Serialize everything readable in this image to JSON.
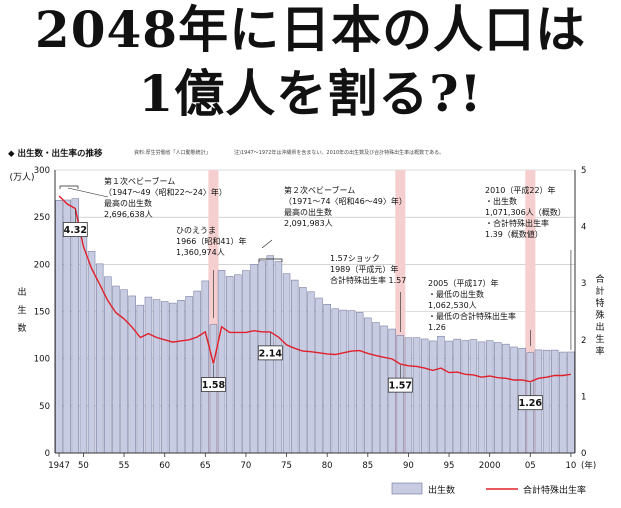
{
  "headline": {
    "line1": "2048年に日本の人口は",
    "line2": "1億人を割る?!"
  },
  "chart_caption": "◆ 出生数・出生率の推移",
  "source_note": "資料:厚生労働省「人口動態統計」",
  "footnote": "注)1947〜1972年は沖縄県を含まない。2010年の出生数及び合計特殊出生率は概数である。",
  "colors": {
    "bars": "#c8cce2",
    "bar_edge": "#6a6f96",
    "rate_line": "#e0202a",
    "highlight": "#f5cfcf"
  },
  "chart_data": {
    "type": "bar",
    "x_label": "(年)",
    "y_left": {
      "unit": "(万人)",
      "label": [
        "出",
        "生",
        "数"
      ],
      "ylim": [
        0,
        300
      ],
      "ticks": [
        0,
        50,
        100,
        150,
        200,
        250,
        300
      ]
    },
    "y_right": {
      "label": [
        "合",
        "計",
        "特",
        "殊",
        "出",
        "生",
        "率"
      ],
      "ylim": [
        0,
        5
      ],
      "ticks": [
        0,
        1,
        2,
        3,
        4,
        5
      ]
    },
    "x_ticks": [
      {
        "year": 1947,
        "label": "1947"
      },
      {
        "year": 1950,
        "label": "50"
      },
      {
        "year": 1955,
        "label": "55"
      },
      {
        "year": 1960,
        "label": "60"
      },
      {
        "year": 1965,
        "label": "65"
      },
      {
        "year": 1970,
        "label": "70"
      },
      {
        "year": 1975,
        "label": "75"
      },
      {
        "year": 1980,
        "label": "80"
      },
      {
        "year": 1985,
        "label": "85"
      },
      {
        "year": 1990,
        "label": "90"
      },
      {
        "year": 1995,
        "label": "95"
      },
      {
        "year": 2000,
        "label": "2000"
      },
      {
        "year": 2005,
        "label": "05"
      },
      {
        "year": 2010,
        "label": "10"
      }
    ],
    "years": [
      1947,
      1948,
      1949,
      1950,
      1951,
      1952,
      1953,
      1954,
      1955,
      1956,
      1957,
      1958,
      1959,
      1960,
      1961,
      1962,
      1963,
      1964,
      1965,
      1966,
      1967,
      1968,
      1969,
      1970,
      1971,
      1972,
      1973,
      1974,
      1975,
      1976,
      1977,
      1978,
      1979,
      1980,
      1981,
      1982,
      1983,
      1984,
      1985,
      1986,
      1987,
      1988,
      1989,
      1990,
      1991,
      1992,
      1993,
      1994,
      1995,
      1996,
      1997,
      1998,
      1999,
      2000,
      2001,
      2002,
      2003,
      2004,
      2005,
      2006,
      2007,
      2008,
      2009,
      2010
    ],
    "series": [
      {
        "name": "出生数",
        "axis": "left",
        "values": [
          267.9,
          268.2,
          269.7,
          233.8,
          213.8,
          200.5,
          186.8,
          177.0,
          173.1,
          166.5,
          156.7,
          165.3,
          162.6,
          160.6,
          158.9,
          161.9,
          166.0,
          171.7,
          182.4,
          136.1,
          193.6,
          187.2,
          188.9,
          193.4,
          200.1,
          203.9,
          209.2,
          203.0,
          190.1,
          183.3,
          175.5,
          170.9,
          164.3,
          157.7,
          152.9,
          151.5,
          150.9,
          149.0,
          143.2,
          138.3,
          134.7,
          131.4,
          124.7,
          122.2,
          122.3,
          120.9,
          118.8,
          123.8,
          118.7,
          120.7,
          119.2,
          120.3,
          117.8,
          119.1,
          117.1,
          115.4,
          112.4,
          111.1,
          106.3,
          109.3,
          109.0,
          109.1,
          107.0,
          107.1
        ]
      },
      {
        "name": "合計特殊出生率",
        "axis": "right",
        "values": [
          4.54,
          4.4,
          4.32,
          3.65,
          3.26,
          2.98,
          2.69,
          2.48,
          2.37,
          2.22,
          2.04,
          2.11,
          2.04,
          2.0,
          1.96,
          1.98,
          2.0,
          2.05,
          2.14,
          1.58,
          2.23,
          2.13,
          2.13,
          2.13,
          2.16,
          2.14,
          2.14,
          2.05,
          1.91,
          1.85,
          1.8,
          1.79,
          1.77,
          1.75,
          1.74,
          1.77,
          1.8,
          1.81,
          1.76,
          1.72,
          1.69,
          1.66,
          1.57,
          1.54,
          1.53,
          1.5,
          1.46,
          1.5,
          1.42,
          1.43,
          1.39,
          1.38,
          1.34,
          1.36,
          1.33,
          1.32,
          1.29,
          1.29,
          1.26,
          1.32,
          1.34,
          1.37,
          1.37,
          1.39
        ]
      }
    ],
    "highlight_years": [
      1966,
      1989,
      2005
    ],
    "value_boxes": [
      {
        "year": 1949,
        "text": "4.32"
      },
      {
        "year": 1966,
        "text": "1.58"
      },
      {
        "year": 1973,
        "text": "2.14"
      },
      {
        "year": 1989,
        "text": "1.57"
      },
      {
        "year": 2005,
        "text": "1.26"
      }
    ],
    "annotations": [
      {
        "year": 1949,
        "lines": [
          "第１次ベビーブーム",
          "（1947〜49〈昭和22〜24〉年）",
          "最高の出生数",
          "2,696,638人"
        ]
      },
      {
        "year": 1966,
        "lines": [
          "ひのえうま",
          "1966（昭和41）年",
          "1,360,974人"
        ]
      },
      {
        "year": 1973,
        "lines": [
          "第２次ベビーブーム",
          "（1971〜74〈昭和46〜49〉年）",
          "最高の出生数",
          "2,091,983人"
        ]
      },
      {
        "year": 1989,
        "lines": [
          "1.57ショック",
          "1989（平成元）年",
          "合計特殊出生率 1.57"
        ]
      },
      {
        "year": 2005,
        "lines": [
          "2005（平成17）年",
          "・最低の出生数",
          "1,062,530人",
          "・最低の合計特殊出生率",
          "1.26"
        ]
      },
      {
        "year": 2010,
        "lines": [
          "2010（平成22）年",
          "・出生数",
          "1,071,306人（概数）",
          "・合計特殊出生率",
          "1.39（概数値）"
        ]
      }
    ],
    "legend": {
      "position": "bottom-right",
      "items": [
        "出生数",
        "合計特殊出生率"
      ]
    }
  }
}
